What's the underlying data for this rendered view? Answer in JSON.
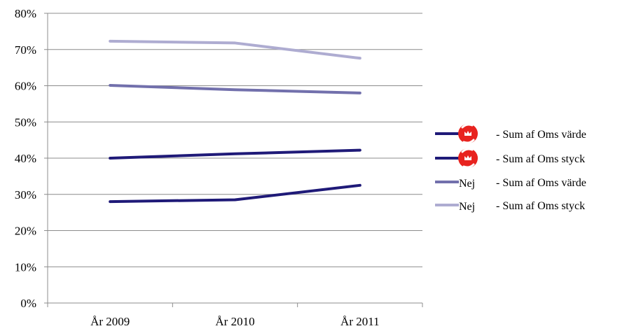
{
  "chart_data": {
    "type": "line",
    "categories": [
      "År 2009",
      "År 2010",
      "År 2011"
    ],
    "yticks": [
      "0%",
      "10%",
      "20%",
      "30%",
      "40%",
      "50%",
      "60%",
      "70%",
      "80%"
    ],
    "ylim": [
      0,
      80
    ],
    "y_unit": "%",
    "grid": "horizontal",
    "legend_position": "right",
    "series": [
      {
        "prefix": "",
        "suffix": "- Sum af Oms värde",
        "marker": "logo-icon",
        "color": "#1f1a78",
        "values": [
          28,
          28.5,
          32.5
        ]
      },
      {
        "prefix": "",
        "suffix": "- Sum af Oms styck",
        "marker": "logo-icon",
        "color": "#1f1a78",
        "values": [
          40,
          41.2,
          42.2
        ]
      },
      {
        "prefix": "Nej",
        "suffix": "- Sum af Oms värde",
        "marker": "",
        "color": "#7270ac",
        "values": [
          60.1,
          58.9,
          58
        ]
      },
      {
        "prefix": "Nej",
        "suffix": "- Sum af Oms styck",
        "marker": "",
        "color": "#aeacd1",
        "values": [
          72.3,
          71.8,
          67.6
        ]
      }
    ]
  },
  "colors": {
    "logo_red": "#e8231f",
    "grid": "#8c8c8c"
  }
}
